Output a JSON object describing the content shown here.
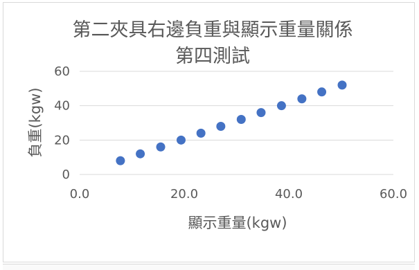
{
  "chart_data": {
    "type": "scatter",
    "title_lines": [
      "第二夾具右邊負重與顯示重量關係",
      "第四測試"
    ],
    "xlabel": "顯示重量(kgw)",
    "ylabel": "負重(kgw)",
    "xlim": [
      0,
      60
    ],
    "ylim": [
      0,
      60
    ],
    "xticks": [
      "0.0",
      "20.0",
      "40.0",
      "60.0"
    ],
    "yticks": [
      "0",
      "20",
      "40",
      "60"
    ],
    "grid": "horizontal",
    "legend": "none",
    "marker_color": "#4472c4",
    "points": [
      {
        "x": 7.8,
        "y": 8
      },
      {
        "x": 11.6,
        "y": 12
      },
      {
        "x": 15.5,
        "y": 16
      },
      {
        "x": 19.4,
        "y": 20
      },
      {
        "x": 23.2,
        "y": 24
      },
      {
        "x": 27.0,
        "y": 28
      },
      {
        "x": 30.9,
        "y": 32
      },
      {
        "x": 34.7,
        "y": 36
      },
      {
        "x": 38.6,
        "y": 40
      },
      {
        "x": 42.5,
        "y": 44
      },
      {
        "x": 46.3,
        "y": 48
      },
      {
        "x": 50.2,
        "y": 52
      }
    ]
  }
}
